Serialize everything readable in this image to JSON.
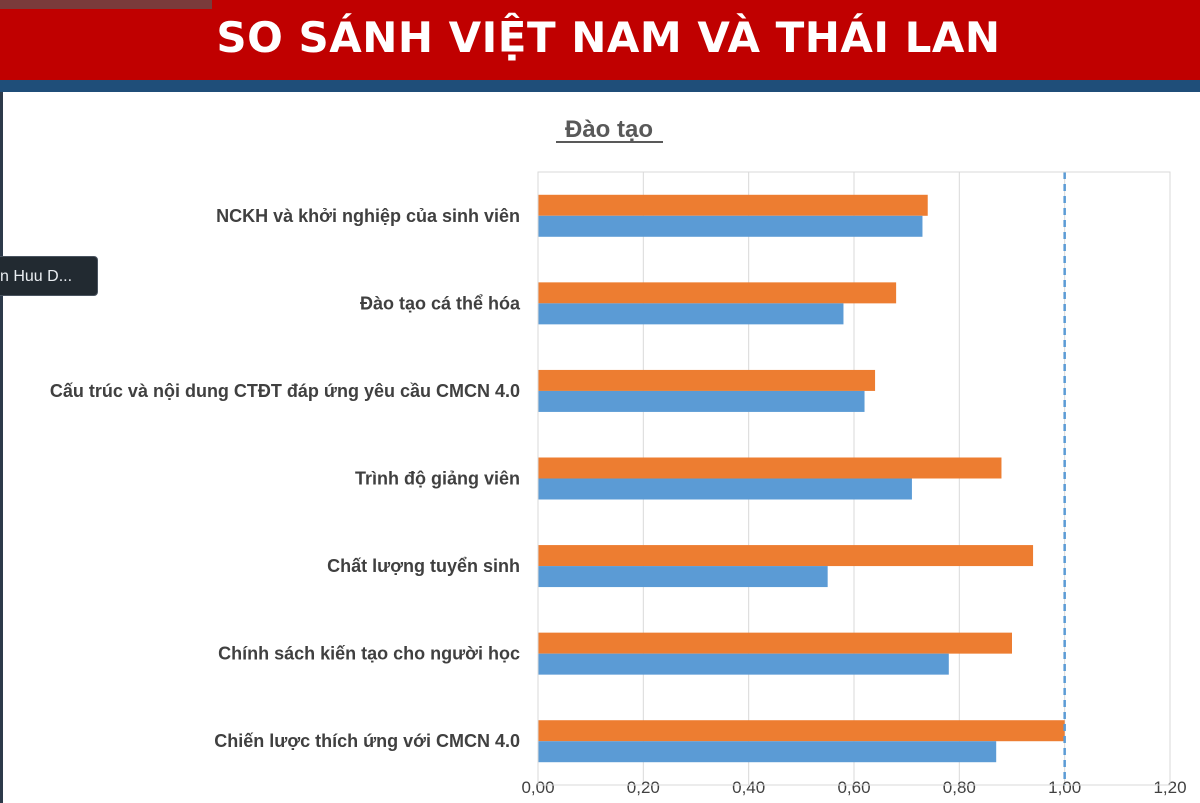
{
  "banner": {
    "title": "SO SÁNH VIỆT NAM VÀ THÁI LAN"
  },
  "participant_tag": {
    "text": "n Huu D..."
  },
  "chart_data": {
    "type": "bar",
    "orientation": "horizontal",
    "title": "Đào tạo",
    "categories": [
      "NCKH và khởi nghiệp của sinh viên",
      "Đào tạo cá thể hóa",
      "Cấu trúc và nội dung CTĐT đáp ứng yêu cầu CMCN 4.0",
      "Trình độ giảng viên",
      "Chất lượng tuyển sinh",
      "Chính sách kiến tạo cho người học",
      "Chiến lược thích ứng với CMCN 4.0"
    ],
    "series": [
      {
        "color": "#ed7d31",
        "values": [
          0.74,
          0.68,
          0.64,
          0.88,
          0.94,
          0.9,
          1.0
        ]
      },
      {
        "color": "#5b9bd5",
        "values": [
          0.73,
          0.58,
          0.62,
          0.71,
          0.55,
          0.78,
          0.87
        ]
      }
    ],
    "xlim": [
      0,
      1.2
    ],
    "xticks": [
      "0,00",
      "0,20",
      "0,40",
      "0,60",
      "0,80",
      "1,00",
      "1,20"
    ],
    "reference_line": {
      "value": 1.0,
      "style": "dashed",
      "color": "#5b9bd5"
    },
    "grid": "vertical",
    "legend": "none"
  }
}
